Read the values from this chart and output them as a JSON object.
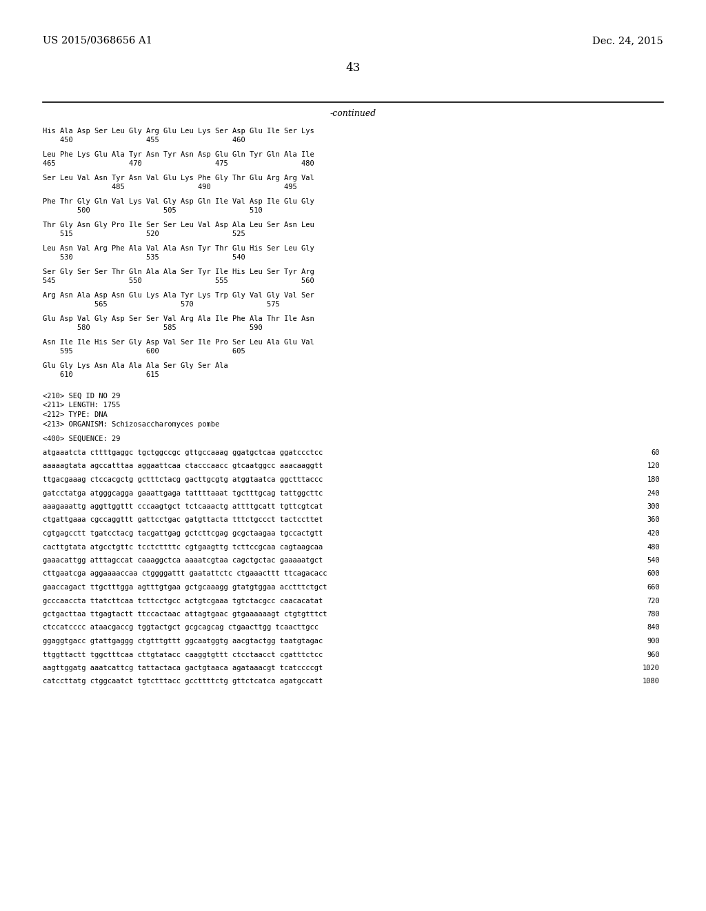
{
  "header_left": "US 2015/0368656 A1",
  "header_right": "Dec. 24, 2015",
  "page_number": "43",
  "continued_label": "-continued",
  "background_color": "#ffffff",
  "text_color": "#000000",
  "mono_font_size": 7.5,
  "header_font_size": 10.5,
  "page_num_font_size": 12.0,
  "continued_font_size": 9.0,
  "amino_acid_lines": [
    [
      "His Ala Asp Ser Leu Gly Arg Glu Leu Lys Ser Asp Glu Ile Ser Lys",
      "    450                 455                 460"
    ],
    [
      "Leu Phe Lys Glu Ala Tyr Asn Tyr Asn Asp Glu Gln Tyr Gln Ala Ile",
      "465                 470                 475                 480"
    ],
    [
      "Ser Leu Val Asn Tyr Asn Val Glu Lys Phe Gly Thr Glu Arg Arg Val",
      "                485                 490                 495"
    ],
    [
      "Phe Thr Gly Gln Val Lys Val Gly Asp Gln Ile Val Asp Ile Glu Gly",
      "        500                 505                 510"
    ],
    [
      "Thr Gly Asn Gly Pro Ile Ser Ser Leu Val Asp Ala Leu Ser Asn Leu",
      "    515                 520                 525"
    ],
    [
      "Leu Asn Val Arg Phe Ala Val Ala Asn Tyr Thr Glu His Ser Leu Gly",
      "    530                 535                 540"
    ],
    [
      "Ser Gly Ser Ser Thr Gln Ala Ala Ser Tyr Ile His Leu Ser Tyr Arg",
      "545                 550                 555                 560"
    ],
    [
      "Arg Asn Ala Asp Asn Glu Lys Ala Tyr Lys Trp Gly Val Gly Val Ser",
      "            565                 570                 575"
    ],
    [
      "Glu Asp Val Gly Asp Ser Ser Val Arg Ala Ile Phe Ala Thr Ile Asn",
      "        580                 585                 590"
    ],
    [
      "Asn Ile Ile His Ser Gly Asp Val Ser Ile Pro Ser Leu Ala Glu Val",
      "    595                 600                 605"
    ],
    [
      "Glu Gly Lys Asn Ala Ala Ala Ser Gly Ser Ala",
      "    610                 615"
    ]
  ],
  "seq_info_lines": [
    "<210> SEQ ID NO 29",
    "<211> LENGTH: 1755",
    "<212> TYPE: DNA",
    "<213> ORGANISM: Schizosaccharomyces pombe"
  ],
  "seq_label": "<400> SEQUENCE: 29",
  "dna_lines": [
    [
      "atgaaatcta cttttgaggc tgctggccgc gttgccaaag ggatgctcaa ggatccctcc",
      "60"
    ],
    [
      "aaaaagtata agccatttaa aggaattcaa ctacccaacc gtcaatggcc aaacaaggtt",
      "120"
    ],
    [
      "ttgacgaaag ctccacgctg gctttctacg gacttgcgtg atggtaatca ggctttaccc",
      "180"
    ],
    [
      "gatcctatga atgggcagga gaaattgaga tattttaaat tgctttgcag tattggcttc",
      "240"
    ],
    [
      "aaagaaattg aggttggttt cccaagtgct tctcaaactg attttgcatt tgttcgtcat",
      "300"
    ],
    [
      "ctgattgaaa cgccaggttt gattcctgac gatgttacta tttctgccct tactccttet",
      "360"
    ],
    [
      "cgtgagcctt tgatcctacg tacgattgag gctcttcgag gcgctaagaa tgccactgtt",
      "420"
    ],
    [
      "cacttgtata atgcctgttc tcctcttttc cgtgaagttg tcttccgcaa cagtaagcaa",
      "480"
    ],
    [
      "gaaacattgg atttagccat caaaggctca aaaatcgtaa cagctgctac gaaaaatgct",
      "540"
    ],
    [
      "cttgaatcga aggaaaaccaa ctggggattt gaatattctc ctgaaacttt ttcagacacc",
      "600"
    ],
    [
      "gaaccagact ttgctttgga agtttgtgaa gctgcaaagg gtatgtggaa acctttctgct",
      "660"
    ],
    [
      "gcccaaccta ttatcttcaa tcttcctgcc actgtcgaaa tgtctacgcc caacacatat",
      "720"
    ],
    [
      "gctgacttaa ttgagtactt ttccactaac attagtgaac gtgaaaaaagt ctgtgtttct",
      "780"
    ],
    [
      "ctccatcccc ataacgaccg tggtactgct gcgcagcag ctgaacttgg tcaacttgcc",
      "840"
    ],
    [
      "ggaggtgacc gtattgaggg ctgtttgttt ggcaatggtg aacgtactgg taatgtagac",
      "900"
    ],
    [
      "ttggttactt tggctttcaa cttgtatacc caaggtgttt ctcctaacct cgatttctcc",
      "960"
    ],
    [
      "aagttggatg aaatcattcg tattactaca gactgtaaca agataaacgt tcatccccgt",
      "1020"
    ],
    [
      "catccttatg ctggcaatct tgtctttacc gccttttctg gttctcatca agatgccatt",
      "1080"
    ]
  ]
}
